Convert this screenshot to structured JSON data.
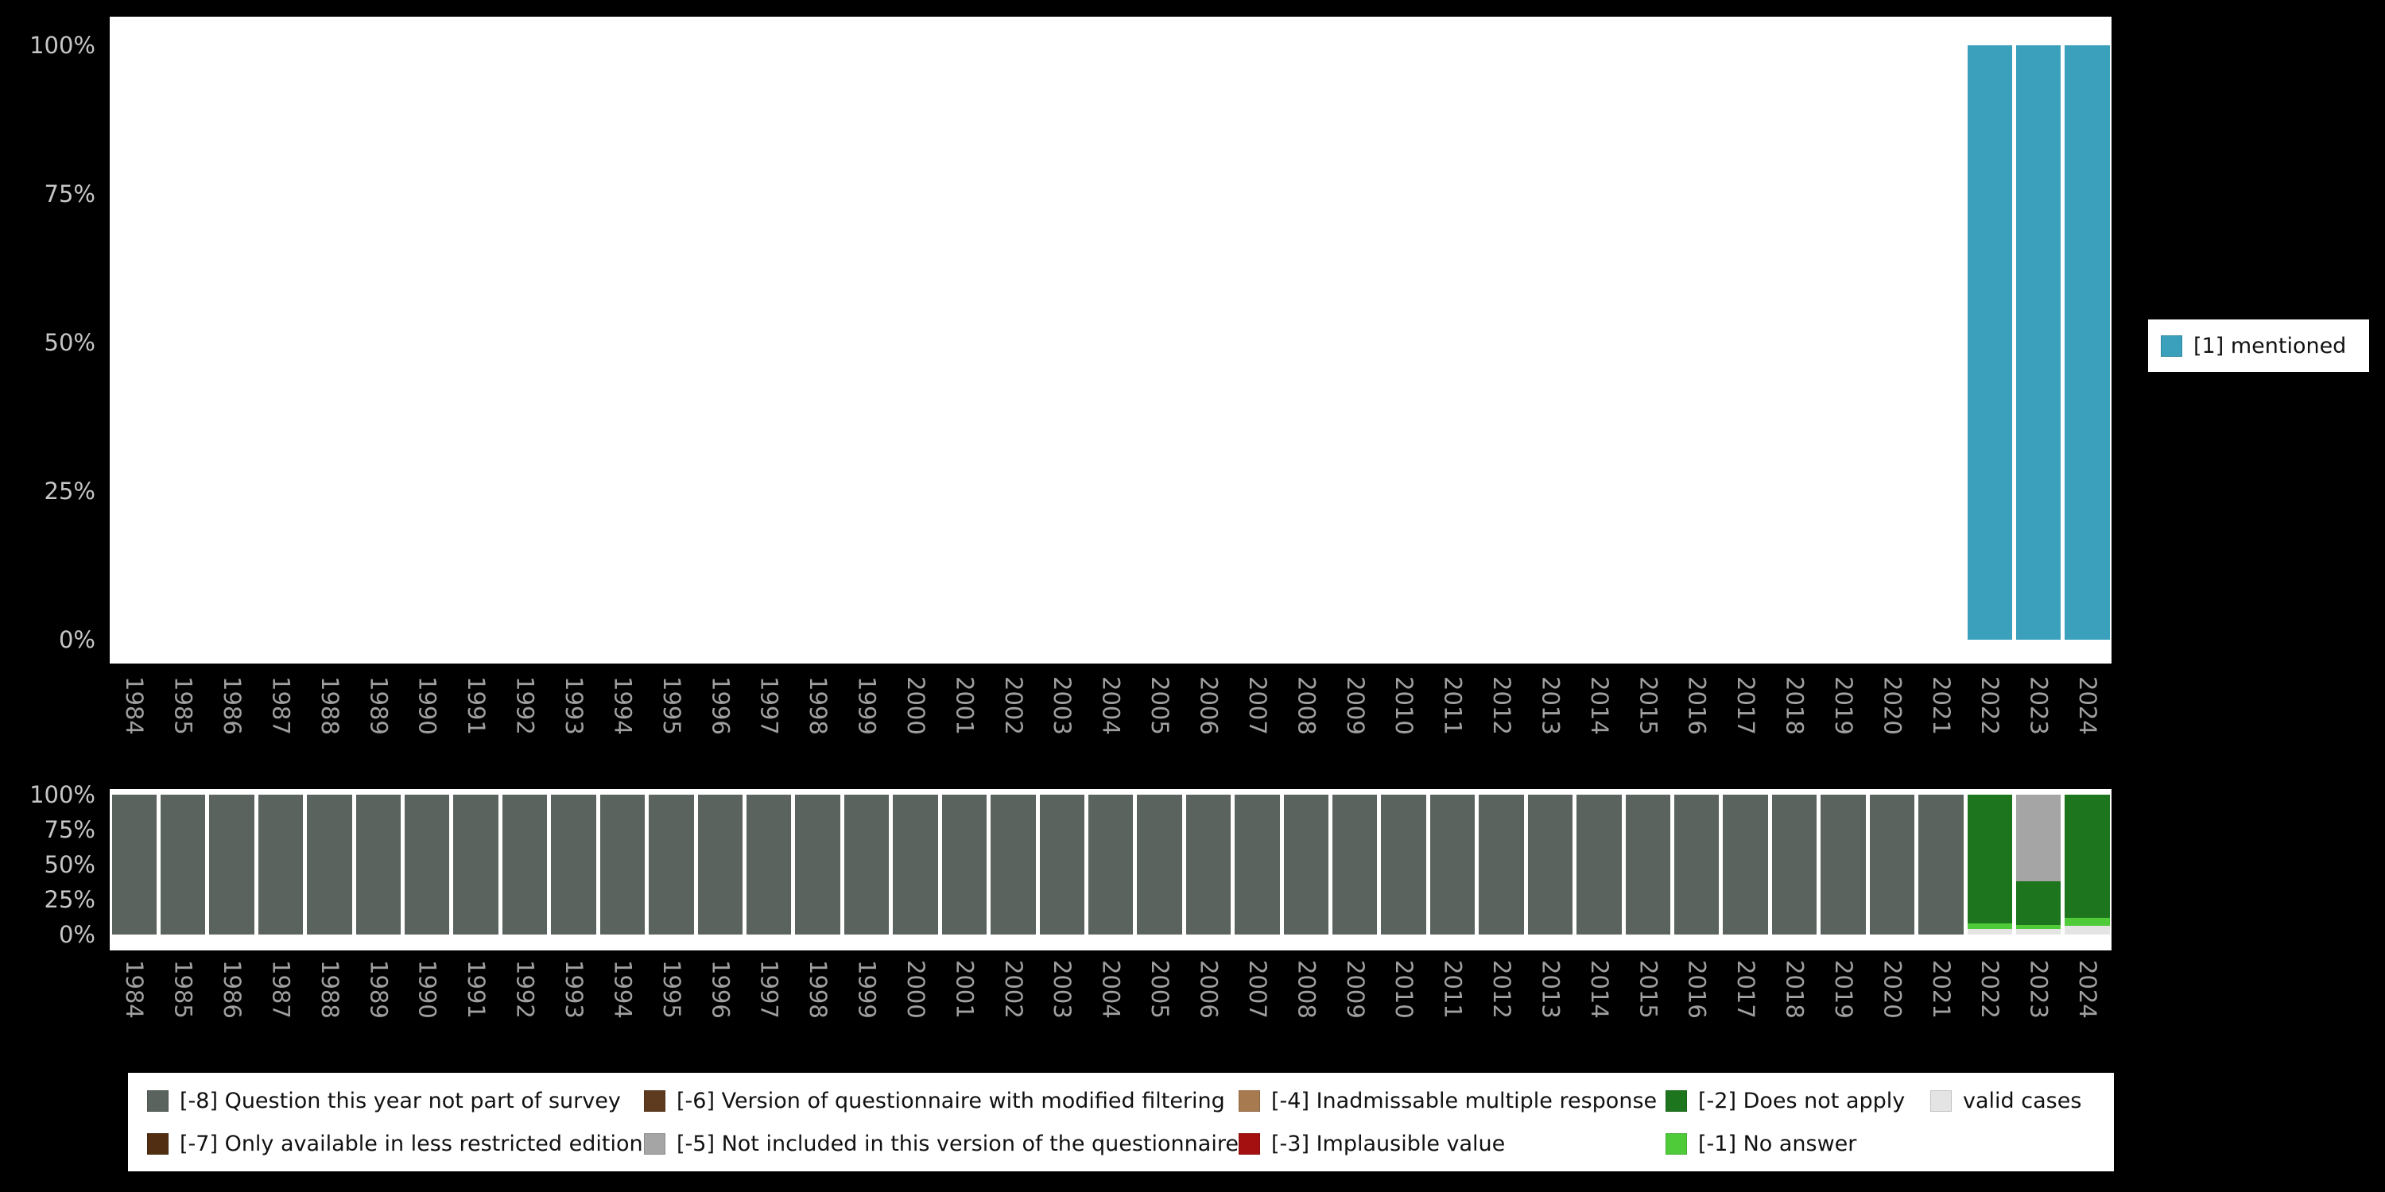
{
  "colors": {
    "background": "#000000",
    "plot_background": "#ffffff",
    "axis_percent_text": "#c6c6c6",
    "axis_year_text": "#a0a0a0",
    "mentioned": "#3aa0bc",
    "m8": "#5a635e",
    "m7": "#512e12",
    "m6": "#5e3a1e",
    "m5": "#a5a5a5",
    "m4": "#a87a50",
    "m3": "#a40f0f",
    "m2": "#1d751d",
    "m1": "#4fcb3a",
    "valid": "#e4e4e4"
  },
  "top_legend": {
    "label": "[1] mentioned"
  },
  "legend": {
    "columns": [
      [
        {
          "label": "[-8] Question this year not part of survey",
          "color_key": "m8"
        },
        {
          "label": "[-7] Only available in less restricted edition",
          "color_key": "m7"
        }
      ],
      [
        {
          "label": "[-6] Version of questionnaire with modified filtering",
          "color_key": "m6"
        },
        {
          "label": "[-5] Not included in this version of the questionnaire",
          "color_key": "m5"
        }
      ],
      [
        {
          "label": "[-4] Inadmissable multiple response",
          "color_key": "m4"
        },
        {
          "label": "[-3] Implausible value",
          "color_key": "m3"
        }
      ],
      [
        {
          "label": "[-2] Does not apply",
          "color_key": "m2"
        },
        {
          "label": "[-1] No answer",
          "color_key": "m1"
        }
      ],
      [
        {
          "label": "valid cases",
          "color_key": "valid"
        }
      ]
    ]
  },
  "chart_data": [
    {
      "type": "bar",
      "stacked": true,
      "title": "",
      "xlabel": "",
      "ylabel": "",
      "ylim": [
        0,
        100
      ],
      "yticks": [
        "100%",
        "75%",
        "50%",
        "25%",
        "0%"
      ],
      "grid": false,
      "legend_position": "right",
      "x": [
        "1984",
        "1985",
        "1986",
        "1987",
        "1988",
        "1989",
        "1990",
        "1991",
        "1992",
        "1993",
        "1994",
        "1995",
        "1996",
        "1997",
        "1998",
        "1999",
        "2000",
        "2001",
        "2002",
        "2003",
        "2004",
        "2005",
        "2006",
        "2007",
        "2008",
        "2009",
        "2010",
        "2011",
        "2012",
        "2013",
        "2014",
        "2015",
        "2016",
        "2017",
        "2018",
        "2019",
        "2020",
        "2021",
        "2022",
        "2023",
        "2024"
      ],
      "series": [
        {
          "name": "[1] mentioned",
          "color_key": "mentioned",
          "values": [
            0,
            0,
            0,
            0,
            0,
            0,
            0,
            0,
            0,
            0,
            0,
            0,
            0,
            0,
            0,
            0,
            0,
            0,
            0,
            0,
            0,
            0,
            0,
            0,
            0,
            0,
            0,
            0,
            0,
            0,
            0,
            0,
            0,
            0,
            0,
            0,
            0,
            0,
            100,
            100,
            100
          ]
        }
      ]
    },
    {
      "type": "bar",
      "stacked": true,
      "title": "",
      "xlabel": "",
      "ylabel": "",
      "ylim": [
        0,
        100
      ],
      "yticks": [
        "100%",
        "75%",
        "50%",
        "25%",
        "0%"
      ],
      "grid": false,
      "legend_position": "bottom",
      "x": [
        "1984",
        "1985",
        "1986",
        "1987",
        "1988",
        "1989",
        "1990",
        "1991",
        "1992",
        "1993",
        "1994",
        "1995",
        "1996",
        "1997",
        "1998",
        "1999",
        "2000",
        "2001",
        "2002",
        "2003",
        "2004",
        "2005",
        "2006",
        "2007",
        "2008",
        "2009",
        "2010",
        "2011",
        "2012",
        "2013",
        "2014",
        "2015",
        "2016",
        "2017",
        "2018",
        "2019",
        "2020",
        "2021",
        "2022",
        "2023",
        "2024"
      ],
      "series": [
        {
          "name": "[-8] Question this year not part of survey",
          "color_key": "m8",
          "values": [
            100,
            100,
            100,
            100,
            100,
            100,
            100,
            100,
            100,
            100,
            100,
            100,
            100,
            100,
            100,
            100,
            100,
            100,
            100,
            100,
            100,
            100,
            100,
            100,
            100,
            100,
            100,
            100,
            100,
            100,
            100,
            100,
            100,
            100,
            100,
            100,
            100,
            100,
            0,
            0,
            0
          ]
        },
        {
          "name": "[-5] Not included in this version of the questionnaire",
          "color_key": "m5",
          "values": [
            0,
            0,
            0,
            0,
            0,
            0,
            0,
            0,
            0,
            0,
            0,
            0,
            0,
            0,
            0,
            0,
            0,
            0,
            0,
            0,
            0,
            0,
            0,
            0,
            0,
            0,
            0,
            0,
            0,
            0,
            0,
            0,
            0,
            0,
            0,
            0,
            0,
            0,
            0,
            62,
            0
          ]
        },
        {
          "name": "[-2] Does not apply",
          "color_key": "m2",
          "values": [
            0,
            0,
            0,
            0,
            0,
            0,
            0,
            0,
            0,
            0,
            0,
            0,
            0,
            0,
            0,
            0,
            0,
            0,
            0,
            0,
            0,
            0,
            0,
            0,
            0,
            0,
            0,
            0,
            0,
            0,
            0,
            0,
            0,
            0,
            0,
            0,
            0,
            0,
            92,
            31,
            88
          ]
        },
        {
          "name": "[-1] No answer",
          "color_key": "m1",
          "values": [
            0,
            0,
            0,
            0,
            0,
            0,
            0,
            0,
            0,
            0,
            0,
            0,
            0,
            0,
            0,
            0,
            0,
            0,
            0,
            0,
            0,
            0,
            0,
            0,
            0,
            0,
            0,
            0,
            0,
            0,
            0,
            0,
            0,
            0,
            0,
            0,
            0,
            0,
            4,
            3,
            6
          ]
        },
        {
          "name": "valid cases",
          "color_key": "valid",
          "values": [
            0,
            0,
            0,
            0,
            0,
            0,
            0,
            0,
            0,
            0,
            0,
            0,
            0,
            0,
            0,
            0,
            0,
            0,
            0,
            0,
            0,
            0,
            0,
            0,
            0,
            0,
            0,
            0,
            0,
            0,
            0,
            0,
            0,
            0,
            0,
            0,
            0,
            0,
            4,
            4,
            6
          ]
        }
      ]
    }
  ]
}
